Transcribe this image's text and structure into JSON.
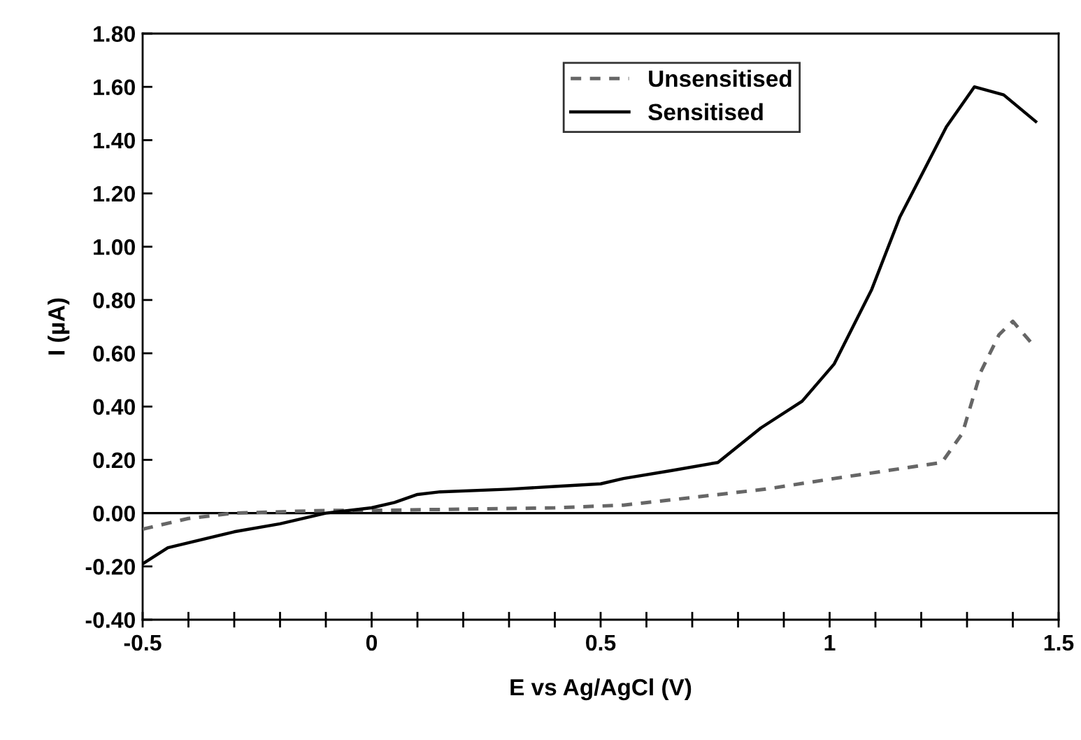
{
  "chart_data": {
    "type": "line",
    "xlabel": "E vs Ag/AgCl (V)",
    "ylabel": "I (µA)",
    "series": [
      {
        "name": "Unsensitised",
        "color": "#666666",
        "line_style": "dashed",
        "x": [
          -0.5,
          -0.4,
          -0.3,
          -0.1,
          0,
          0.2,
          0.4,
          0.55,
          0.655,
          0.86,
          1.01,
          1.245,
          1.29,
          1.33,
          1.37,
          1.4,
          1.44
        ],
        "values": [
          -0.06,
          -0.02,
          0.0,
          0.01,
          0.01,
          0.015,
          0.02,
          0.03,
          0.05,
          0.09,
          0.13,
          0.19,
          0.3,
          0.53,
          0.67,
          0.72,
          0.64
        ]
      },
      {
        "name": "Sensitised",
        "color": "#000000",
        "line_style": "solid",
        "x": [
          -0.5,
          -0.445,
          -0.3,
          -0.2,
          -0.1,
          0,
          0.05,
          0.1,
          0.15,
          0.3,
          0.4,
          0.5,
          0.55,
          0.655,
          0.756,
          0.85,
          0.94,
          1.01,
          1.092,
          1.153,
          1.255,
          1.316,
          1.38,
          1.45
        ],
        "values": [
          -0.19,
          -0.13,
          -0.07,
          -0.04,
          0.0,
          0.02,
          0.04,
          0.07,
          0.08,
          0.09,
          0.1,
          0.11,
          0.13,
          0.16,
          0.19,
          0.32,
          0.42,
          0.56,
          0.84,
          1.11,
          1.45,
          1.6,
          1.57,
          1.47
        ]
      }
    ],
    "xlim": [
      -0.5,
      1.5
    ],
    "xticks": [
      -0.5,
      {
        "value": -0.4,
        "label": null
      },
      {
        "value": -0.3,
        "label": null
      },
      {
        "value": -0.2,
        "label": null
      },
      {
        "value": -0.1,
        "label": null
      },
      0,
      {
        "value": 0.1,
        "label": null
      },
      {
        "value": 0.2,
        "label": null
      },
      {
        "value": 0.3,
        "label": null
      },
      {
        "value": 0.4,
        "label": null
      },
      0.5,
      {
        "value": 0.6,
        "label": null
      },
      {
        "value": 0.7,
        "label": null
      },
      {
        "value": 0.8,
        "label": null
      },
      {
        "value": 0.9,
        "label": null
      },
      1,
      {
        "value": 1.1,
        "label": null
      },
      {
        "value": 1.2,
        "label": null
      },
      {
        "value": 1.3,
        "label": null
      },
      {
        "value": 1.4,
        "label": null
      },
      1.5
    ],
    "ylim": [
      -0.4,
      1.8
    ],
    "yticks": [
      {
        "value": -0.4,
        "label": "-0.40"
      },
      {
        "value": -0.2,
        "label": "-0.20"
      },
      {
        "value": 0,
        "label": "0.00"
      },
      {
        "value": 0.2,
        "label": "0.20"
      },
      {
        "value": 0.4,
        "label": "0.40"
      },
      {
        "value": 0.6,
        "label": "0.60"
      },
      {
        "value": 0.8,
        "label": "0.80"
      },
      {
        "value": 1.0,
        "label": "1.00"
      },
      {
        "value": 1.2,
        "label": "1.20"
      },
      {
        "value": 1.4,
        "label": "1.40"
      },
      {
        "value": 1.6,
        "label": "1.60"
      },
      {
        "value": 1.8,
        "label": "1.80"
      }
    ],
    "ref_lines": [
      {
        "axis": "y",
        "value": 0,
        "color": "#000000"
      }
    ],
    "grid": false,
    "legend": "top right",
    "marker": "none"
  }
}
